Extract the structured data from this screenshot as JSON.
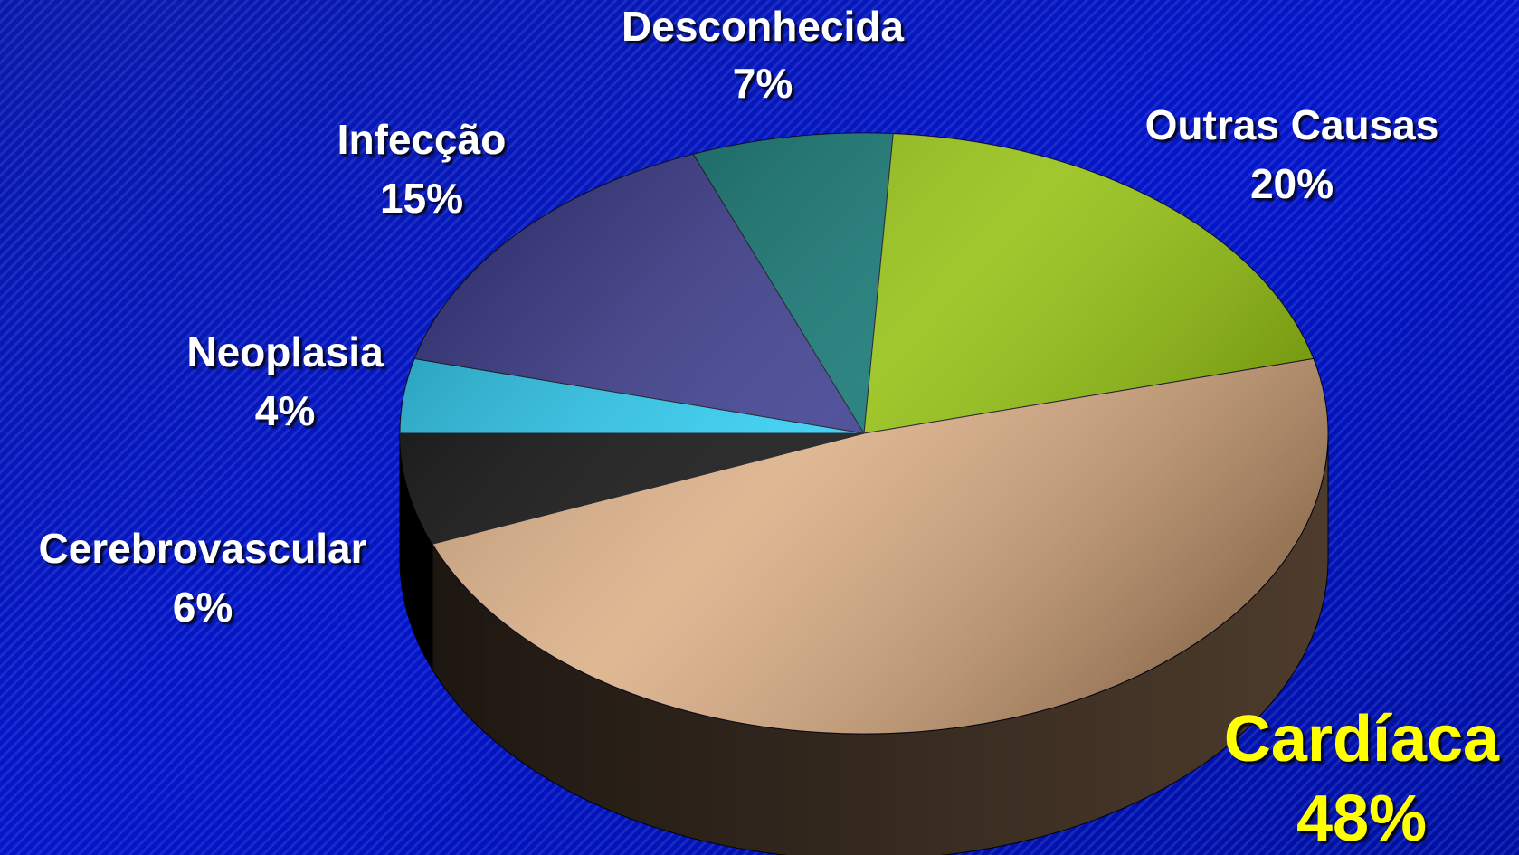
{
  "chart_data": {
    "type": "pie",
    "categories": [
      "Neoplasia",
      "Infecção",
      "Desconhecida",
      "Outras Causas",
      "Cardíaca",
      "Cerebrovascular"
    ],
    "values": [
      4,
      15,
      7,
      20,
      48,
      6
    ],
    "value_labels": [
      "4%",
      "15%",
      "7%",
      "20%",
      "48%",
      "6%"
    ],
    "colors": [
      "#1ec8f0",
      "#2e2e86",
      "#006a66",
      "#8cbc00",
      "#d8a87c",
      "#000000"
    ]
  }
}
